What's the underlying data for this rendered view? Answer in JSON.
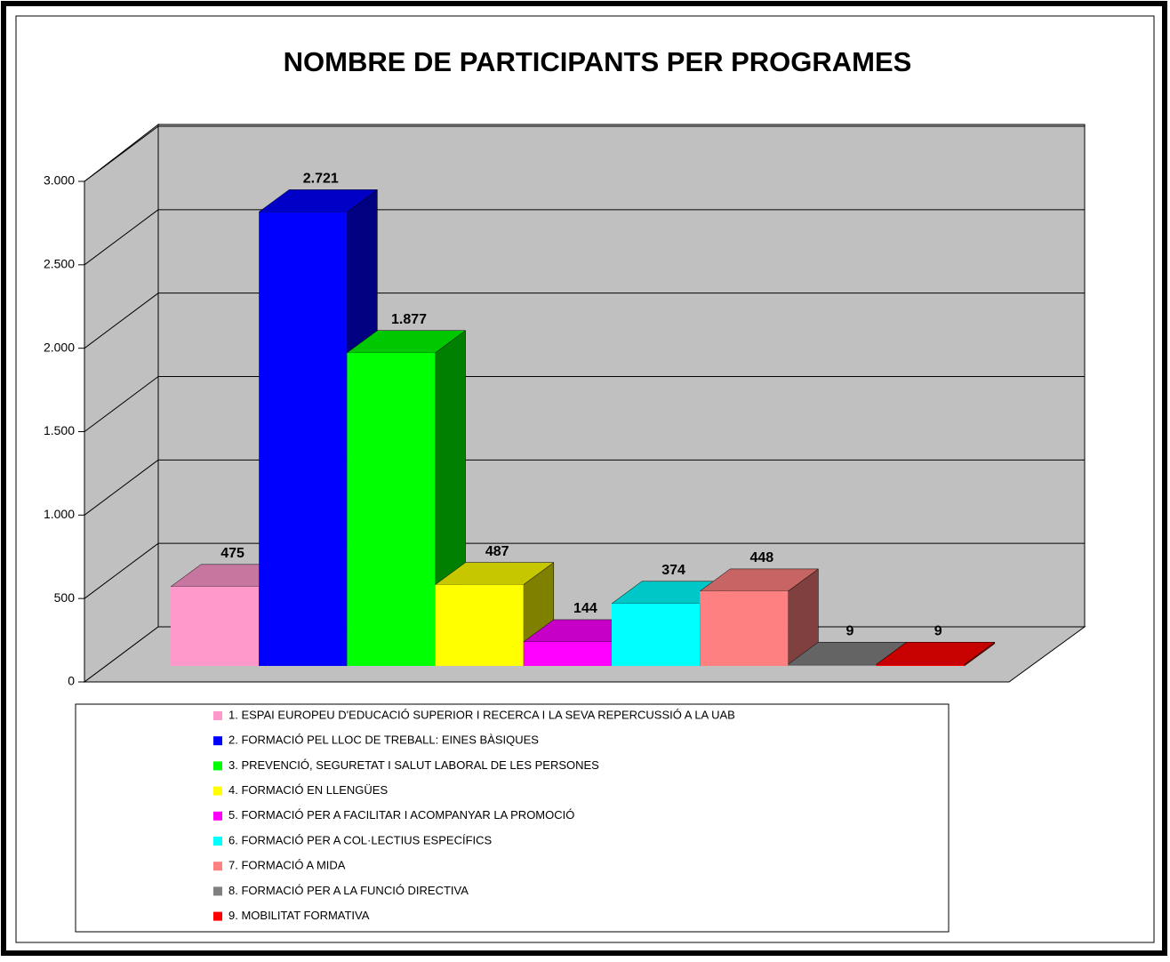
{
  "chart_data": {
    "type": "bar3d",
    "title": "NOMBRE DE PARTICIPANTS PER PROGRAMES",
    "categories": [
      "1. ESPAI EUROPEU D'EDUCACIÓ SUPERIOR I RECERCA I LA SEVA REPERCUSSIÓ A LA UAB",
      "2. FORMACIÓ PEL LLOC DE TREBALL: EINES BÀSIQUES",
      "3. PREVENCIÓ, SEGURETAT I SALUT LABORAL DE LES PERSONES",
      "4. FORMACIÓ EN LLENGÜES",
      "5. FORMACIÓ PER A FACILITAR I ACOMPANYAR LA PROMOCIÓ",
      "6. FORMACIÓ PER A COL·LECTIUS ESPECÍFICS",
      "7. FORMACIÓ A MIDA",
      "8. FORMACIÓ PER A LA FUNCIÓ DIRECTIVA",
      "9. MOBILITAT FORMATIVA"
    ],
    "values": [
      475,
      2721,
      1877,
      487,
      144,
      374,
      448,
      9,
      9
    ],
    "value_labels": [
      "475",
      "2.721",
      "1.877",
      "487",
      "144",
      "374",
      "448",
      "9",
      "9"
    ],
    "colors": [
      "#ff99cc",
      "#0000ff",
      "#00ff00",
      "#ffff00",
      "#ff00ff",
      "#00ffff",
      "#ff8080",
      "#808080",
      "#ff0000"
    ],
    "ylim": [
      0,
      3000
    ],
    "yticks": [
      0,
      500,
      {
        "value": 1000,
        "label": "1.000"
      },
      {
        "value": 1500,
        "label": "1.500"
      },
      {
        "value": 2000,
        "label": "2.000"
      },
      {
        "value": 2500,
        "label": "2.500"
      },
      {
        "value": 3000,
        "label": "3.000"
      }
    ],
    "grid": true
  }
}
